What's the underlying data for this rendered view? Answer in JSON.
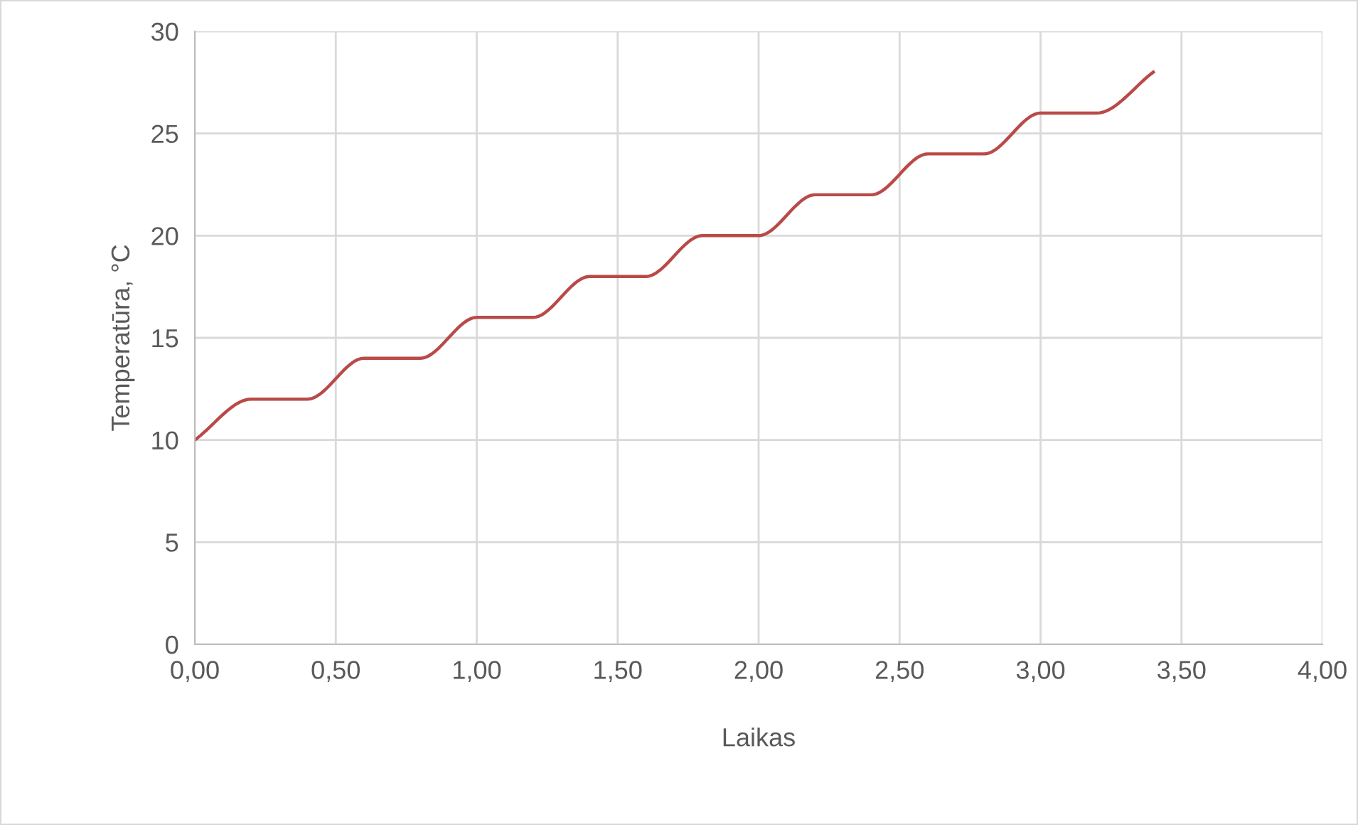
{
  "chart_data": {
    "type": "line",
    "xlabel": "Laikas",
    "ylabel": "Temperatūra, °C",
    "x": [
      0,
      0.2,
      0.4,
      0.6,
      0.8,
      1.0,
      1.2,
      1.4,
      1.6,
      1.8,
      2.0,
      2.2,
      2.4,
      2.6,
      2.8,
      3.0,
      3.2,
      3.4
    ],
    "series": [
      {
        "color": "#b94a48",
        "values": [
          10,
          12,
          12,
          14,
          14,
          16,
          16,
          18,
          18,
          20,
          20,
          22,
          22,
          24,
          24,
          26,
          26,
          28
        ]
      }
    ],
    "xlim": [
      0,
      4
    ],
    "ylim": [
      0,
      30
    ],
    "xticks": [
      {
        "value": 0,
        "label": "0,00"
      },
      {
        "value": 0.5,
        "label": "0,50"
      },
      {
        "value": 1,
        "label": "1,00"
      },
      {
        "value": 1.5,
        "label": "1,50"
      },
      {
        "value": 2,
        "label": "2,00"
      },
      {
        "value": 2.5,
        "label": "2,50"
      },
      {
        "value": 3,
        "label": "3,00"
      },
      {
        "value": 3.5,
        "label": "3,50"
      },
      {
        "value": 4,
        "label": "4,00"
      }
    ],
    "yticks": [
      0,
      5,
      10,
      15,
      20,
      25,
      30
    ],
    "grid": true,
    "legend": false,
    "marker": "none",
    "line_style": "solid"
  }
}
